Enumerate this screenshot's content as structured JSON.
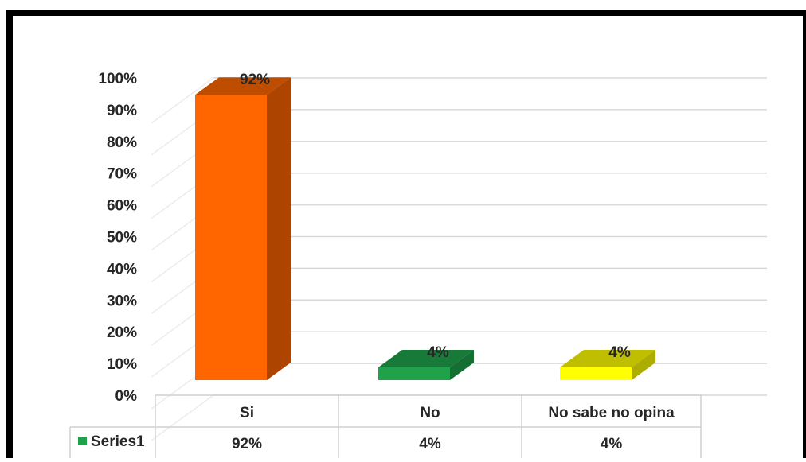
{
  "chart_data": {
    "type": "bar",
    "title": "",
    "xlabel": "",
    "ylabel": "",
    "categories": [
      "Si",
      "No",
      "No sabe no opina"
    ],
    "series": [
      {
        "name": "Series1",
        "values": [
          92,
          4,
          4
        ],
        "value_labels": [
          "92%",
          "4%",
          "4%"
        ],
        "colors": [
          "#ff6600",
          "#1fa24a",
          "#ffff00"
        ]
      }
    ],
    "ylim": [
      0,
      100
    ],
    "yticks": [
      0,
      10,
      20,
      30,
      40,
      50,
      60,
      70,
      80,
      90,
      100
    ],
    "ytick_labels": [
      "0%",
      "10%",
      "20%",
      "30%",
      "40%",
      "50%",
      "60%",
      "70%",
      "80%",
      "90%",
      "100%"
    ],
    "grid": true,
    "three_d": true,
    "data_table": true,
    "legend_key_color": "#1fa24a",
    "frame_color": "#000000"
  }
}
